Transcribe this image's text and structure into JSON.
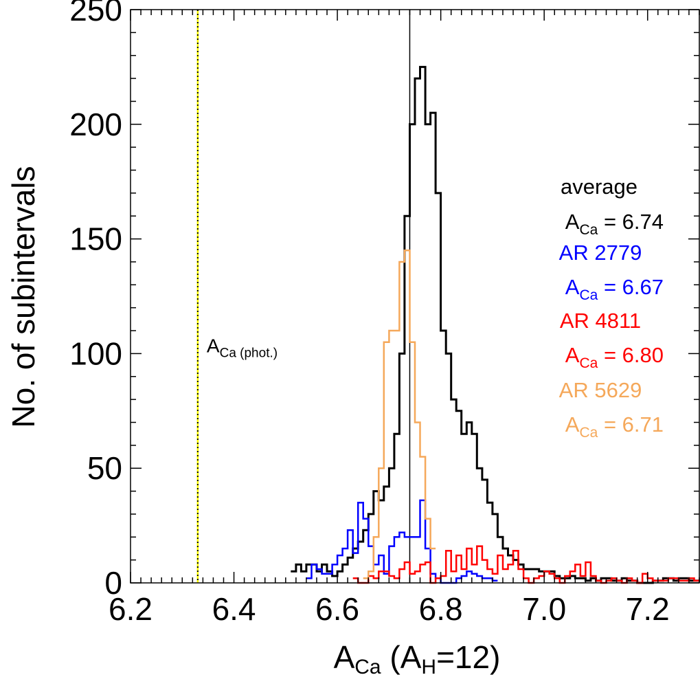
{
  "chart_data": {
    "type": "histogram",
    "xlabel": {
      "main": "A",
      "sub": "Ca",
      "paren_open": " (A",
      "paren_sub": "H",
      "paren_rest": "=12)"
    },
    "ylabel": "No. of subintervals",
    "xlim": [
      6.2,
      7.3
    ],
    "ylim": [
      0,
      250
    ],
    "xticks": [
      6.2,
      6.4,
      6.6,
      6.8,
      7.0,
      7.2
    ],
    "xtick_labels": [
      "6.2",
      "6.4",
      "6.6",
      "6.8",
      "7.0",
      "7.2"
    ],
    "yticks": [
      0,
      50,
      100,
      150,
      200,
      250
    ],
    "ytick_labels": [
      "0",
      "50",
      "100",
      "150",
      "200",
      "250"
    ],
    "reference_lines": [
      {
        "x": 6.74,
        "style": "solid",
        "color": "#000000"
      },
      {
        "x": 6.33,
        "style": "dotted",
        "color": "#000000",
        "underlay_color": "#ffff00"
      }
    ],
    "reference_label": {
      "main": "A",
      "sub": "Ca (phot.)",
      "x": 6.35,
      "y": 100
    },
    "bin_width": 0.01,
    "series": [
      {
        "color": "#000000",
        "x_start": 6.51,
        "counts": [
          5,
          8,
          5,
          8,
          8,
          5,
          8,
          5,
          3,
          5,
          8,
          11,
          15,
          18,
          23,
          30,
          40,
          36,
          42,
          50,
          65,
          100,
          160,
          200,
          220,
          225,
          200,
          205,
          170,
          110,
          100,
          80,
          75,
          65,
          70,
          65,
          50,
          45,
          35,
          30,
          20,
          15,
          12,
          10,
          8,
          6,
          6,
          6,
          5,
          5,
          5,
          3,
          2,
          2,
          3,
          2,
          2,
          1,
          2,
          1,
          2,
          2,
          1,
          1,
          2,
          1,
          1,
          0,
          0,
          0,
          1,
          1,
          2,
          2,
          1,
          2,
          2,
          1,
          1
        ]
      },
      {
        "color": "#0000ff",
        "x_start": 6.54,
        "counts": [
          2,
          8,
          6,
          4,
          4,
          8,
          12,
          15,
          23,
          13,
          35,
          28,
          16,
          8,
          12,
          4,
          16,
          20,
          22,
          20,
          20,
          20,
          36,
          15,
          4,
          2,
          0,
          0,
          0,
          2,
          3,
          5,
          4,
          3,
          2,
          2,
          1
        ]
      },
      {
        "color": "#ff0000",
        "x_start": 6.63,
        "counts": [
          2,
          0,
          0,
          3,
          2,
          5,
          5,
          3,
          2,
          6,
          9,
          4,
          5,
          8,
          9,
          0,
          2,
          3,
          14,
          5,
          12,
          6,
          15,
          8,
          16,
          10,
          6,
          4,
          12,
          6,
          8,
          14,
          6,
          2,
          0,
          2,
          3,
          5,
          4,
          2,
          0,
          3,
          5,
          8,
          3,
          9,
          3,
          1,
          0,
          1,
          2,
          1,
          0,
          2,
          1,
          0,
          4,
          2,
          1,
          1,
          1,
          2,
          2,
          1,
          1,
          2,
          1,
          1,
          1
        ]
      },
      {
        "color": "#f5a85a",
        "x_start": 6.65,
        "counts": [
          2,
          5,
          20,
          50,
          105,
          110,
          110,
          140,
          145,
          105,
          70,
          55,
          28,
          15
        ]
      }
    ],
    "legend": {
      "title": "average",
      "entries": [
        {
          "color": "#000000",
          "label": "",
          "sym": "A",
          "sub": "Ca",
          "eq": " =   6.74"
        },
        {
          "color": "#0000ff",
          "label": "AR 2779",
          "sym": "A",
          "sub": "Ca",
          "eq": " =   6.67"
        },
        {
          "color": "#ff0000",
          "label": "AR 4811",
          "sym": "A",
          "sub": "Ca",
          "eq": " =   6.80"
        },
        {
          "color": "#f5a85a",
          "label": "AR 5629",
          "sym": "A",
          "sub": "Ca",
          "eq": " =   6.71"
        }
      ]
    }
  }
}
